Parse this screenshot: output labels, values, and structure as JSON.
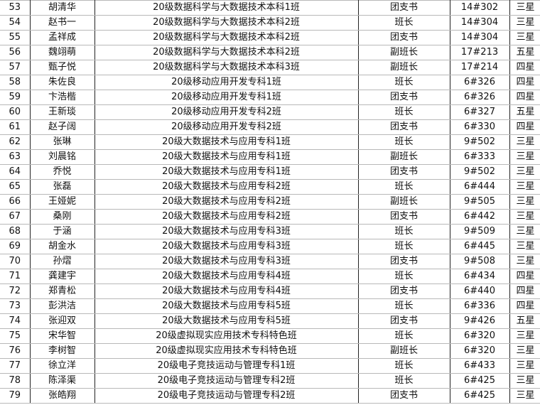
{
  "rows": [
    {
      "no": "53",
      "name": "胡清华",
      "class": "20级数据科学与大数据技术本科1班",
      "role": "团支书",
      "dorm": "14#302",
      "star": "三星"
    },
    {
      "no": "54",
      "name": "赵书一",
      "class": "20级数据科学与大数据技术本科2班",
      "role": "班长",
      "dorm": "14#304",
      "star": "三星"
    },
    {
      "no": "55",
      "name": "孟祥成",
      "class": "20级数据科学与大数据技术本科2班",
      "role": "团支书",
      "dorm": "14#304",
      "star": "三星"
    },
    {
      "no": "56",
      "name": "魏翊萌",
      "class": "20级数据科学与大数据技术本科2班",
      "role": "副班长",
      "dorm": "17#213",
      "star": "五星"
    },
    {
      "no": "57",
      "name": "甄子悦",
      "class": "20级数据科学与大数据技术本科3班",
      "role": "副班长",
      "dorm": "17#214",
      "star": "四星"
    },
    {
      "no": "58",
      "name": "朱佐良",
      "class": "20级移动应用开发专科1班",
      "role": "班长",
      "dorm": "6#326",
      "star": "四星"
    },
    {
      "no": "59",
      "name": "卞浩楷",
      "class": "20级移动应用开发专科1班",
      "role": "团支书",
      "dorm": "6#326",
      "star": "四星"
    },
    {
      "no": "60",
      "name": "王新琰",
      "class": "20级移动应用开发专科2班",
      "role": "班长",
      "dorm": "6#327",
      "star": "五星"
    },
    {
      "no": "61",
      "name": "赵子阔",
      "class": "20级移动应用开发专科2班",
      "role": "团支书",
      "dorm": "6#330",
      "star": "四星"
    },
    {
      "no": "62",
      "name": "张琳",
      "class": "20级大数据技术与应用专科1班",
      "role": "班长",
      "dorm": "9#502",
      "star": "三星"
    },
    {
      "no": "63",
      "name": "刘晨铭",
      "class": "20级大数据技术与应用专科1班",
      "role": "副班长",
      "dorm": "6#333",
      "star": "三星"
    },
    {
      "no": "64",
      "name": "乔悦",
      "class": "20级大数据技术与应用专科1班",
      "role": "团支书",
      "dorm": "9#502",
      "star": "三星"
    },
    {
      "no": "65",
      "name": "张磊",
      "class": "20级大数据技术与应用专科2班",
      "role": "班长",
      "dorm": "6#444",
      "star": "三星"
    },
    {
      "no": "66",
      "name": "王娅妮",
      "class": "20级大数据技术与应用专科2班",
      "role": "副班长",
      "dorm": "9#505",
      "star": "三星"
    },
    {
      "no": "67",
      "name": "桑刚",
      "class": "20级大数据技术与应用专科2班",
      "role": "团支书",
      "dorm": "6#442",
      "star": "三星"
    },
    {
      "no": "68",
      "name": "于涵",
      "class": "20级大数据技术与应用专科3班",
      "role": "班长",
      "dorm": "9#509",
      "star": "三星"
    },
    {
      "no": "69",
      "name": "胡金水",
      "class": "20级大数据技术与应用专科3班",
      "role": "班长",
      "dorm": "6#445",
      "star": "三星"
    },
    {
      "no": "70",
      "name": "孙熠",
      "class": "20级大数据技术与应用专科3班",
      "role": "团支书",
      "dorm": "9#508",
      "star": "三星"
    },
    {
      "no": "71",
      "name": "龚建宇",
      "class": "20级大数据技术与应用专科4班",
      "role": "班长",
      "dorm": "6#434",
      "star": "四星"
    },
    {
      "no": "72",
      "name": "郑青松",
      "class": "20级大数据技术与应用专科4班",
      "role": "团支书",
      "dorm": "6#440",
      "star": "四星"
    },
    {
      "no": "73",
      "name": "彭洪洁",
      "class": "20级大数据技术与应用专科5班",
      "role": "班长",
      "dorm": "6#336",
      "star": "四星"
    },
    {
      "no": "74",
      "name": "张迎双",
      "class": "20级大数据技术与应用专科5班",
      "role": "团支书",
      "dorm": "9#426",
      "star": "五星"
    },
    {
      "no": "75",
      "name": "宋华智",
      "class": "20级虚拟现实应用技术专科特色班",
      "role": "班长",
      "dorm": "6#320",
      "star": "三星"
    },
    {
      "no": "76",
      "name": "李树智",
      "class": "20级虚拟现实应用技术专科特色班",
      "role": "副班长",
      "dorm": "6#320",
      "star": "三星"
    },
    {
      "no": "77",
      "name": "徐立洋",
      "class": "20级电子竞技运动与管理专科1班",
      "role": "班长",
      "dorm": "6#433",
      "star": "三星"
    },
    {
      "no": "78",
      "name": "陈泽渠",
      "class": "20级电子竞技运动与管理专科2班",
      "role": "班长",
      "dorm": "6#425",
      "star": "三星"
    },
    {
      "no": "79",
      "name": "张皓翔",
      "class": "20级电子竞技运动与管理专科2班",
      "role": "团支书",
      "dorm": "6#425",
      "star": "三星"
    }
  ]
}
